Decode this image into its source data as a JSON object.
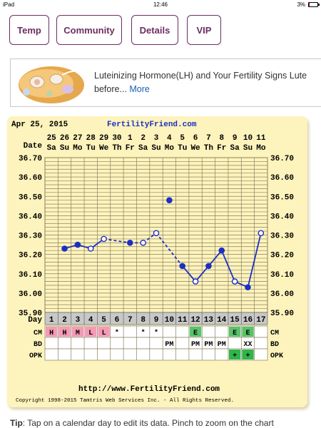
{
  "status": {
    "device": "iPad",
    "time": "12:46",
    "battery": "3%"
  },
  "nav": {
    "temp": "Temp",
    "community": "Community",
    "details": "Details",
    "vip": "VIP"
  },
  "ad": {
    "text": "Luteinizing Hormone(LH) and Your Fertility Signs Lute",
    "text2": "before...",
    "more": "More"
  },
  "chart": {
    "date_header": "Apr 25, 2015",
    "site": "FertilityFriend.com",
    "date_label": "Date",
    "day_label": "Day",
    "footer_url": "http://www.FertilityFriend.com",
    "copyright": "Copyright 1998-2015 Tamtris Web Services Inc. - All Rights Reserved.",
    "row_labels": [
      "CM",
      "BD",
      "OPK"
    ]
  },
  "chart_data": {
    "type": "line",
    "ylim": [
      35.9,
      36.7
    ],
    "y_ticks": [
      "36.70",
      "36.60",
      "36.50",
      "36.40",
      "36.30",
      "36.20",
      "36.10",
      "36.00",
      "35.90"
    ],
    "dates": [
      "25",
      "26",
      "27",
      "28",
      "29",
      "30",
      "1",
      "2",
      "3",
      "4",
      "5",
      "6",
      "7",
      "8",
      "9",
      "10",
      "11"
    ],
    "weekdays": [
      "Sa",
      "Su",
      "Mo",
      "Tu",
      "We",
      "Th",
      "Fr",
      "Sa",
      "Su",
      "Mo",
      "Tu",
      "We",
      "Th",
      "Fr",
      "Sa",
      "Su",
      "Mo"
    ],
    "days": [
      "1",
      "2",
      "3",
      "4",
      "5",
      "6",
      "7",
      "8",
      "9",
      "10",
      "11",
      "12",
      "13",
      "14",
      "15",
      "16",
      "17"
    ],
    "temps": [
      36.23,
      36.25,
      36.23,
      36.28,
      null,
      36.26,
      36.26,
      36.31,
      36.48,
      36.14,
      36.06,
      36.14,
      36.22,
      36.06,
      36.03,
      36.31
    ],
    "temp_days": [
      2,
      3,
      4,
      5,
      null,
      7,
      8,
      9,
      10,
      11,
      12,
      13,
      14,
      15,
      16,
      17
    ],
    "open_markers": [
      false,
      false,
      true,
      true,
      null,
      false,
      true,
      true,
      false,
      false,
      true,
      false,
      false,
      true,
      false,
      true
    ],
    "excluded_day": 10,
    "cm": [
      "H",
      "H",
      "M",
      "L",
      "L",
      "*",
      "",
      "*",
      "*",
      "",
      "",
      "E",
      "",
      "",
      "E",
      "E",
      ""
    ],
    "cm_colors": [
      "pink",
      "pink",
      "pink",
      "pink",
      "pink",
      "",
      "",
      "",
      "",
      "",
      "",
      "green",
      "",
      "",
      "green",
      "green",
      ""
    ],
    "bd": [
      "",
      "",
      "",
      "",
      "",
      "",
      "",
      "",
      "",
      "PM",
      "",
      "PM",
      "PM",
      "PM",
      "",
      "XX",
      ""
    ],
    "opk": [
      "",
      "",
      "",
      "",
      "",
      "",
      "",
      "",
      "",
      "",
      "",
      "",
      "",
      "",
      "+",
      "+",
      ""
    ]
  },
  "tip": {
    "label": "Tip",
    "text": ": Tap on a calendar day to edit its data. Pinch to zoom on the chart"
  }
}
